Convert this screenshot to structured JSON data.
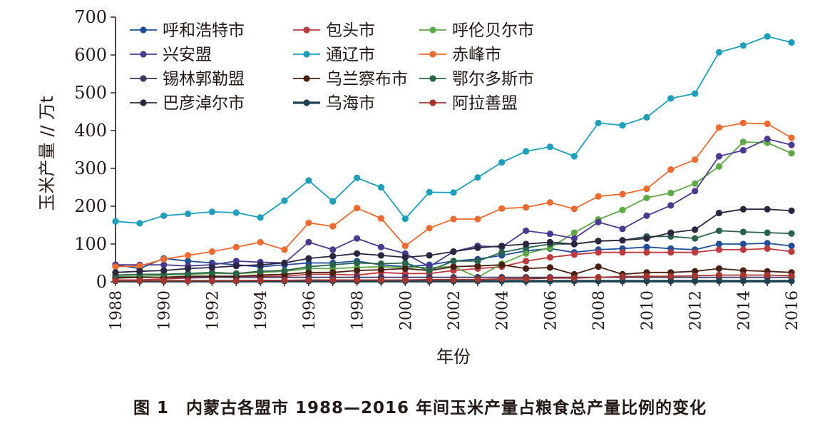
{
  "caption": "图 1　内蒙古各盟市 1988—2016 年间玉米产量占粮食总产量比例的变化",
  "chart_data": {
    "type": "line",
    "xlabel": "年份",
    "ylabel": "玉米产量 // 万t",
    "xlim": [
      1988,
      2016
    ],
    "ylim": [
      0,
      700
    ],
    "yticks": [
      0,
      100,
      200,
      300,
      400,
      500,
      600,
      700
    ],
    "xticks": [
      1988,
      1990,
      1992,
      1994,
      1996,
      1998,
      2000,
      2002,
      2004,
      2006,
      2008,
      2010,
      2012,
      2014,
      2016
    ],
    "legend_position": "top-left",
    "x": [
      1988,
      1989,
      1990,
      1991,
      1992,
      1993,
      1994,
      1995,
      1996,
      1997,
      1998,
      1999,
      2000,
      2001,
      2002,
      2003,
      2004,
      2005,
      2006,
      2007,
      2008,
      2009,
      2010,
      2011,
      2012,
      2013,
      2014,
      2015,
      2016
    ],
    "series": [
      {
        "name": "呼和浩特市",
        "color": "#1f4e9c",
        "values": [
          45,
          35,
          62,
          55,
          50,
          45,
          40,
          45,
          50,
          50,
          55,
          45,
          40,
          45,
          55,
          60,
          70,
          82,
          88,
          78,
          85,
          88,
          92,
          88,
          85,
          100,
          100,
          102,
          95
        ]
      },
      {
        "name": "包头市",
        "color": "#c0393b",
        "values": [
          5,
          5,
          8,
          10,
          12,
          15,
          15,
          15,
          20,
          20,
          18,
          25,
          22,
          22,
          30,
          35,
          40,
          55,
          65,
          72,
          78,
          78,
          78,
          78,
          78,
          85,
          85,
          88,
          80
        ]
      },
      {
        "name": "呼伦贝尔市",
        "color": "#5daa45",
        "values": [
          15,
          15,
          18,
          20,
          22,
          22,
          25,
          28,
          35,
          35,
          38,
          40,
          38,
          38,
          40,
          12,
          48,
          75,
          90,
          130,
          165,
          190,
          222,
          235,
          260,
          305,
          370,
          368,
          340
        ]
      },
      {
        "name": "兴安盟",
        "color": "#4b3a93",
        "values": [
          45,
          45,
          45,
          42,
          45,
          55,
          52,
          50,
          105,
          85,
          115,
          92,
          75,
          40,
          80,
          95,
          92,
          135,
          127,
          115,
          158,
          140,
          175,
          202,
          240,
          332,
          348,
          378,
          362
        ]
      },
      {
        "name": "通辽市",
        "color": "#1aa0bd",
        "values": [
          160,
          155,
          175,
          180,
          185,
          183,
          170,
          215,
          268,
          213,
          275,
          250,
          167,
          237,
          236,
          276,
          316,
          345,
          357,
          332,
          420,
          414,
          435,
          485,
          498,
          607,
          625,
          649,
          633
        ]
      },
      {
        "name": "赤峰市",
        "color": "#f06a2e",
        "values": [
          40,
          42,
          60,
          70,
          80,
          92,
          105,
          85,
          156,
          147,
          195,
          168,
          95,
          142,
          166,
          166,
          194,
          197,
          210,
          193,
          226,
          232,
          246,
          297,
          323,
          408,
          420,
          418,
          381
        ]
      },
      {
        "name": "锡林郭勒盟",
        "color": "#3b3662",
        "values": [
          12,
          12,
          12,
          12,
          12,
          12,
          12,
          12,
          12,
          12,
          12,
          12,
          12,
          12,
          12,
          12,
          12,
          12,
          12,
          12,
          12,
          12,
          12,
          12,
          12,
          12,
          12,
          12,
          12
        ]
      },
      {
        "name": "乌兰察布市",
        "color": "#4a1f12",
        "values": [
          10,
          12,
          12,
          15,
          15,
          15,
          18,
          20,
          25,
          25,
          30,
          32,
          35,
          30,
          40,
          42,
          45,
          35,
          38,
          20,
          40,
          20,
          25,
          25,
          28,
          35,
          30,
          28,
          25
        ]
      },
      {
        "name": "鄂尔多斯市",
        "color": "#2a6448",
        "values": [
          18,
          20,
          20,
          22,
          25,
          22,
          28,
          30,
          40,
          45,
          50,
          48,
          50,
          30,
          55,
          55,
          78,
          90,
          100,
          100,
          108,
          110,
          120,
          120,
          115,
          135,
          132,
          130,
          128
        ]
      },
      {
        "name": "巴彦淖尔市",
        "color": "#2c2540",
        "values": [
          25,
          28,
          30,
          35,
          38,
          42,
          45,
          50,
          62,
          68,
          75,
          70,
          65,
          70,
          80,
          90,
          95,
          100,
          105,
          100,
          108,
          110,
          115,
          130,
          138,
          182,
          192,
          192,
          188
        ]
      },
      {
        "name": "乌海市",
        "color": "#1d4252",
        "values": [
          2,
          2,
          2,
          2,
          2,
          2,
          2,
          2,
          2,
          2,
          2,
          2,
          2,
          2,
          2,
          2,
          2,
          2,
          2,
          2,
          2,
          2,
          2,
          2,
          2,
          2,
          2,
          2,
          2
        ]
      },
      {
        "name": "阿拉善盟",
        "color": "#a5352f",
        "values": [
          3,
          3,
          3,
          3,
          3,
          3,
          4,
          4,
          5,
          5,
          5,
          5,
          5,
          6,
          6,
          6,
          8,
          8,
          10,
          10,
          12,
          14,
          15,
          15,
          16,
          18,
          18,
          18,
          16
        ]
      }
    ]
  }
}
